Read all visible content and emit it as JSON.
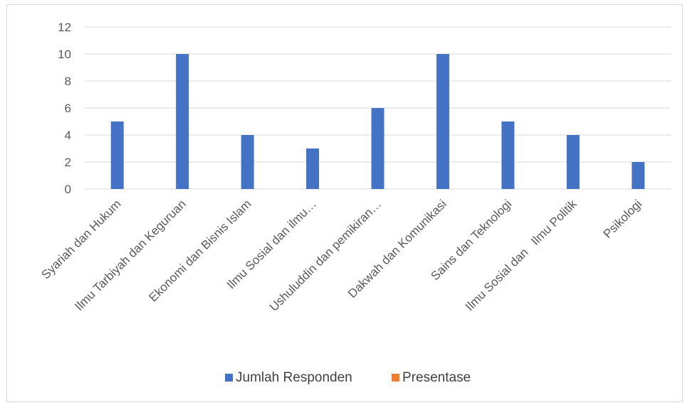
{
  "chart_data": {
    "type": "bar",
    "title": "",
    "xlabel": "",
    "ylabel": "",
    "categories": [
      "Syariah dan Hukum",
      "Ilmu Tarbiyah dan Keguruan",
      "Ekonomi dan Bisnis Islam",
      "Ilmu Sosial dan ilmu…",
      "Ushuluddin dan pemikiran…",
      "Dakwah dan Komunikasi",
      "Sains dan Teknologi",
      "Ilmu Sosial dan   Ilmu Politik",
      "Psikologi"
    ],
    "series": [
      {
        "name": "Jumlah Responden",
        "color": "#4472c4",
        "values": [
          5,
          10,
          4,
          3,
          6,
          10,
          5,
          4,
          2
        ]
      },
      {
        "name": "Presentase",
        "color": "#ed7d31",
        "values": [
          null,
          null,
          null,
          null,
          null,
          null,
          null,
          null,
          null
        ]
      }
    ],
    "ylim": [
      0,
      12
    ],
    "yticks": [
      0,
      2,
      4,
      6,
      8,
      10,
      12
    ],
    "grid": true,
    "legend_position": "bottom"
  }
}
